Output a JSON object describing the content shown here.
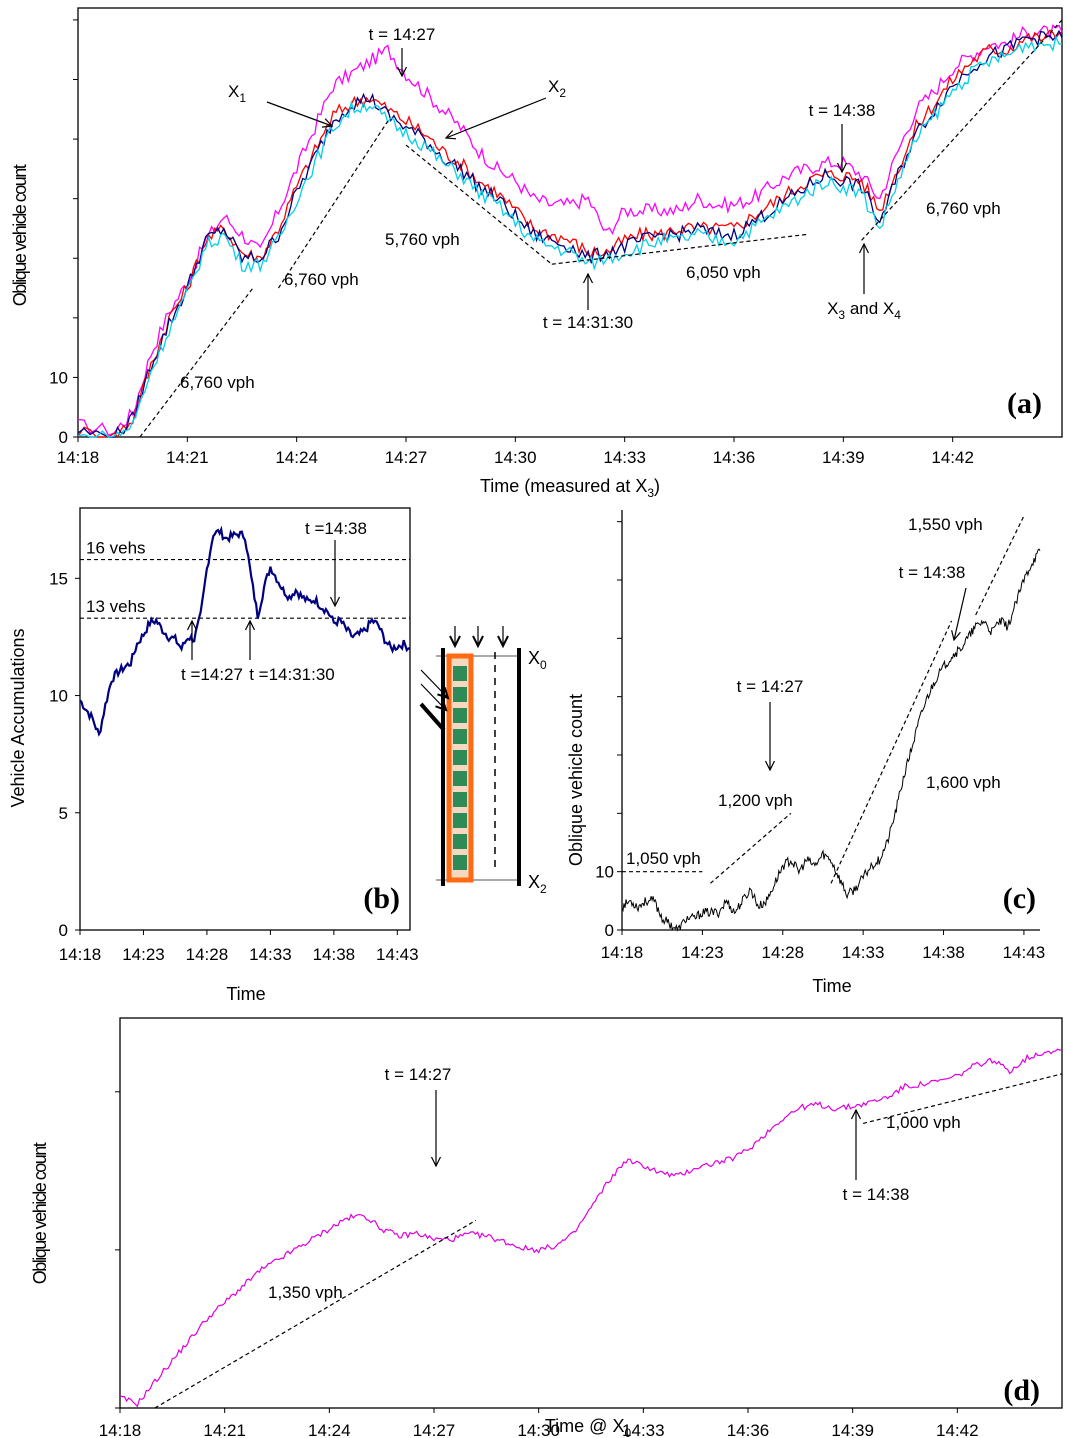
{
  "chart_data": [
    {
      "panel": "(a)",
      "type": "line",
      "ylabel": "Oblique vehicle count",
      "xlabel": "Time (measured at X",
      "xlabel_sub": "3",
      "xlabel_end": ")",
      "x_ticks": [
        "14:18",
        "14:21",
        "14:24",
        "14:27",
        "14:30",
        "14:33",
        "14:36",
        "14:39",
        "14:42"
      ],
      "y_ticks": [
        "0",
        "10"
      ],
      "series": [
        {
          "color": "#ff00ff",
          "x": [
            0,
            1,
            1.5,
            2,
            2.5,
            3,
            3.5,
            4,
            4.5,
            5,
            5.5,
            6,
            6.5,
            7,
            7.5,
            8,
            8.5,
            9,
            9.5,
            10,
            10.5,
            11,
            11.5,
            12,
            12.5,
            13,
            13.5,
            14,
            14.5,
            15,
            15.5,
            16,
            16.5,
            17,
            17.5,
            18,
            18.5,
            19,
            19.5,
            20,
            20.5,
            21,
            21.5,
            22,
            22.5,
            23,
            23.5,
            24,
            24.5,
            25,
            25.5,
            26,
            26.5,
            27
          ],
          "y": [
            2,
            1,
            4,
            14,
            21,
            26,
            33,
            37,
            34,
            31,
            38,
            45,
            52,
            59,
            61,
            63,
            65,
            61,
            58,
            55,
            52,
            48,
            45,
            43,
            40,
            39,
            39,
            40,
            34,
            38,
            38,
            38,
            38,
            40,
            39,
            39,
            40,
            42,
            44,
            45,
            46,
            46,
            44,
            40,
            48,
            55,
            58,
            62,
            64,
            66,
            66,
            68,
            68,
            68
          ]
        },
        {
          "color": "#ff0000",
          "x": [
            0,
            1,
            1.5,
            2,
            2.5,
            3,
            3.5,
            4,
            4.5,
            5,
            5.5,
            6,
            6.5,
            7,
            7.5,
            8,
            8.5,
            9,
            9.5,
            10,
            10.5,
            11,
            11.5,
            12,
            12.5,
            13,
            13.5,
            14,
            14.5,
            15,
            15.5,
            16,
            16.5,
            17,
            17.5,
            18,
            18.5,
            19,
            19.5,
            20,
            20.5,
            21,
            21.5,
            22,
            22.5,
            23,
            23.5,
            24,
            24.5,
            25,
            25.5,
            26,
            26.5,
            27
          ],
          "y": [
            1,
            0,
            3,
            12,
            20,
            25,
            33,
            35,
            31,
            30,
            35,
            42,
            48,
            54,
            56,
            57,
            55,
            53,
            51,
            48,
            46,
            43,
            41,
            38,
            35,
            34,
            33,
            31,
            31,
            33,
            34,
            34,
            35,
            35,
            35,
            35,
            37,
            39,
            41,
            43,
            44,
            44,
            43,
            38,
            45,
            52,
            56,
            60,
            63,
            65,
            65,
            67,
            67,
            68
          ]
        },
        {
          "color": "#000080",
          "x": [
            0,
            1,
            1.5,
            2,
            2.5,
            3,
            3.5,
            4,
            4.5,
            5,
            5.5,
            6,
            6.5,
            7,
            7.5,
            8,
            8.5,
            9,
            9.5,
            10,
            10.5,
            11,
            11.5,
            12,
            12.5,
            13,
            13.5,
            14,
            14.5,
            15,
            15.5,
            16,
            16.5,
            17,
            17.5,
            18,
            18.5,
            19,
            19.5,
            20,
            20.5,
            21,
            21.5,
            22,
            22.5,
            23,
            23.5,
            24,
            24.5,
            25,
            25.5,
            26,
            26.5,
            27
          ],
          "y": [
            1,
            0,
            3,
            12,
            19,
            25,
            33,
            35,
            30,
            30,
            34,
            41,
            47,
            53,
            56,
            57,
            54,
            52,
            50,
            47,
            45,
            42,
            40,
            37,
            34,
            33,
            32,
            30,
            31,
            32,
            33,
            34,
            34,
            35,
            34,
            34,
            36,
            38,
            40,
            42,
            44,
            43,
            42,
            36,
            44,
            51,
            55,
            59,
            62,
            64,
            65,
            67,
            67,
            67
          ]
        },
        {
          "color": "#00d0e8",
          "x": [
            0,
            1,
            1.5,
            2,
            2.5,
            3,
            3.5,
            4,
            4.5,
            5,
            5.5,
            6,
            6.5,
            7,
            7.5,
            8,
            8.5,
            9,
            9.5,
            10,
            10.5,
            11,
            11.5,
            12,
            12.5,
            13,
            13.5,
            14,
            14.5,
            15,
            15.5,
            16,
            16.5,
            17,
            17.5,
            18,
            18.5,
            19,
            19.5,
            20,
            20.5,
            21,
            21.5,
            22,
            22.5,
            23,
            23.5,
            24,
            24.5,
            25,
            25.5,
            26,
            26.5,
            27
          ],
          "y": [
            0,
            0,
            2,
            11,
            18,
            24,
            32,
            34,
            29,
            29,
            33,
            40,
            46,
            52,
            55,
            56,
            53,
            51,
            49,
            46,
            44,
            41,
            39,
            36,
            33,
            32,
            31,
            29,
            30,
            31,
            32,
            33,
            33,
            34,
            33,
            33,
            35,
            37,
            39,
            41,
            43,
            42,
            41,
            35,
            43,
            50,
            54,
            58,
            61,
            63,
            64,
            66,
            66,
            66
          ]
        }
      ],
      "rate_lines": [
        {
          "label": "6,760 vph",
          "x": [
            1.7,
            4.8
          ],
          "y": [
            0,
            25
          ]
        },
        {
          "label": "6,760 vph",
          "x": [
            5.5,
            8.5
          ],
          "y": [
            25,
            53
          ]
        },
        {
          "label": "5,760 vph",
          "x": [
            9,
            13
          ],
          "y": [
            49,
            29
          ]
        },
        {
          "label": "6,050 vph",
          "x": [
            13,
            20
          ],
          "y": [
            29,
            34
          ]
        },
        {
          "label": "6,760 vph",
          "x": [
            21.5,
            27
          ],
          "y": [
            33,
            70
          ]
        }
      ],
      "annotations": [
        {
          "text": "t = 14:27"
        },
        {
          "text": "X",
          "sub": "1"
        },
        {
          "text": "X",
          "sub": "2"
        },
        {
          "text": "t = 14:38"
        },
        {
          "text": "t = 14:31:30"
        },
        {
          "text": "X",
          "sub": "3",
          "mid": " and X",
          "sub2": "4"
        }
      ],
      "ylim": [
        0,
        72
      ],
      "xlim": [
        0,
        27
      ]
    },
    {
      "panel": "(b)",
      "type": "line",
      "ylabel": "Vehicle Accumulations",
      "xlabel": "Time",
      "x_ticks": [
        "14:18",
        "14:23",
        "14:28",
        "14:33",
        "14:38",
        "14:43"
      ],
      "y_ticks": [
        "0",
        "5",
        "10",
        "15"
      ],
      "series": [
        {
          "color": "#000080",
          "x": [
            0,
            0.5,
            1,
            1.5,
            2,
            2.5,
            3,
            3.5,
            4,
            4.5,
            5,
            5.5,
            6,
            6.5,
            7,
            7.5,
            8,
            8.5,
            9,
            9.5,
            10,
            10.5,
            11,
            11.5,
            12,
            12.5,
            13,
            13.5,
            14,
            14.5,
            15,
            15.5,
            16,
            16.5,
            17,
            17.5,
            18,
            18.5,
            19,
            19.5,
            20,
            20.5,
            21,
            21.5,
            22,
            22.5,
            23,
            23.5,
            24,
            24.5,
            25,
            25.5,
            26
          ],
          "y": [
            9.8,
            9.4,
            9,
            8.3,
            9.6,
            10.7,
            11,
            11.2,
            11.4,
            12.2,
            12.6,
            13.1,
            13.2,
            12.8,
            12.5,
            12.4,
            12,
            12.5,
            12.4,
            13.4,
            15.4,
            16.9,
            17,
            16.7,
            16.8,
            16.9,
            16.8,
            15,
            13.4,
            14.6,
            15.5,
            15,
            14.5,
            14.2,
            14.5,
            14.2,
            14,
            14.1,
            13.8,
            13.6,
            13.1,
            13.2,
            12.8,
            12.5,
            12.6,
            12.8,
            13.2,
            13,
            12.4,
            12,
            12.1,
            12.2,
            12
          ]
        }
      ],
      "ref_lines": [
        {
          "label": "16 vehs",
          "y": 15.8
        },
        {
          "label": "13 vehs",
          "y": 13.3
        }
      ],
      "annotations": [
        {
          "text": "t =14:38"
        },
        {
          "text": "t =14:27"
        },
        {
          "text": "t =14:31:30"
        }
      ],
      "ylim": [
        0,
        18
      ],
      "xlim": [
        0,
        26
      ]
    },
    {
      "panel": "(c)",
      "type": "line",
      "ylabel": "Oblique vehicle count",
      "xlabel": "Time",
      "x_ticks": [
        "14:18",
        "14:23",
        "14:28",
        "14:33",
        "14:38",
        "14:43"
      ],
      "y_ticks": [
        "0",
        "10"
      ],
      "series": [
        {
          "color": "#000000",
          "x": [
            0,
            0.5,
            1,
            1.5,
            2,
            2.5,
            3,
            3.5,
            4,
            4.5,
            5,
            5.5,
            6,
            6.5,
            7,
            7.5,
            8,
            8.5,
            9,
            9.5,
            10,
            10.5,
            11,
            11.5,
            12,
            12.5,
            13,
            13.5,
            14,
            14.5,
            15,
            15.5,
            16,
            16.5,
            17,
            17.5,
            18,
            18.5,
            19,
            19.5,
            20,
            20.5,
            21,
            21.5,
            22,
            22.5,
            23,
            23.5,
            24,
            24.5,
            25,
            25.5,
            26
          ],
          "y": [
            4,
            5,
            4,
            5,
            5,
            2,
            1,
            0,
            2,
            2,
            3,
            3,
            3,
            5,
            3,
            5,
            7,
            4,
            5,
            8,
            11,
            12,
            10,
            12,
            11,
            13,
            12,
            9,
            6,
            7,
            9,
            11,
            12,
            15,
            20,
            26,
            31,
            36,
            40,
            43,
            45,
            47,
            48,
            50,
            52,
            53,
            51,
            53,
            52,
            56,
            60,
            63,
            65
          ]
        }
      ],
      "rate_lines": [
        {
          "label": "1,050 vph",
          "x": [
            0,
            5
          ],
          "y": [
            10,
            10
          ]
        },
        {
          "label": "1,200 vph",
          "x": [
            5.5,
            10.5
          ],
          "y": [
            8,
            20
          ]
        },
        {
          "label": "1,600 vph",
          "x": [
            13,
            20.5
          ],
          "y": [
            8,
            53
          ]
        },
        {
          "label": "1,550 vph",
          "x": [
            22,
            25
          ],
          "y": [
            54,
            71
          ]
        }
      ],
      "annotations": [
        {
          "text": "t = 14:38"
        },
        {
          "text": "t = 14:27"
        }
      ],
      "ylim": [
        0,
        72
      ],
      "xlim": [
        0,
        26
      ]
    },
    {
      "panel": "(d)",
      "type": "line",
      "ylabel": "Oblique vehicle count",
      "xlabel": "Time @ X",
      "xlabel_sub": "0",
      "x_ticks": [
        "14:18",
        "14:21",
        "14:24",
        "14:27",
        "14:30",
        "14:33",
        "14:36",
        "14:39",
        "14:42"
      ],
      "series": [
        {
          "color": "#e000e0",
          "x": [
            0,
            0.5,
            1,
            1.5,
            2,
            2.5,
            3,
            3.5,
            4,
            4.5,
            5,
            5.5,
            6,
            6.5,
            7,
            7.5,
            8,
            8.5,
            9,
            9.5,
            10,
            10.5,
            11,
            11.5,
            12,
            12.5,
            13,
            13.5,
            14,
            14.5,
            15,
            15.5,
            16,
            16.5,
            17,
            17.5,
            18,
            18.5,
            19,
            19.5,
            20,
            20.5,
            21,
            21.5,
            22,
            22.5,
            23,
            23.5,
            24,
            24.5,
            25,
            25.5,
            26,
            26.5,
            27
          ],
          "y": [
            1,
            0.4,
            2.5,
            4.5,
            6.5,
            8.5,
            10,
            11.5,
            13,
            14,
            15,
            16,
            17,
            18,
            18.3,
            17,
            16.3,
            16.6,
            16,
            16,
            16.5,
            16.3,
            15.8,
            15.2,
            15,
            15.4,
            16.5,
            19,
            21.5,
            23.5,
            23,
            22.3,
            22,
            22.8,
            23.2,
            23.6,
            24.5,
            26,
            27.5,
            28.5,
            28.8,
            28.4,
            28.6,
            29,
            29.5,
            30.5,
            30.7,
            31,
            31.5,
            32.5,
            33,
            32,
            33.2,
            33.8,
            34
          ]
        }
      ],
      "rate_lines": [
        {
          "label": "1,350 vph",
          "x": [
            1,
            10.2
          ],
          "y": [
            0,
            17.8
          ]
        },
        {
          "label": "1,000 vph",
          "x": [
            21.3,
            27
          ],
          "y": [
            27,
            31.7
          ]
        }
      ],
      "annotations": [
        {
          "text": "t = 14:27"
        },
        {
          "text": "t = 14:38"
        }
      ],
      "ylim": [
        0,
        37
      ],
      "xlim": [
        0,
        27
      ]
    }
  ],
  "schematic": {
    "top_label": "X",
    "top_sub": "0",
    "bottom_label": "X",
    "bottom_sub": "2",
    "box_color": "#ff6a13",
    "fill_color": "#2e8b57"
  }
}
